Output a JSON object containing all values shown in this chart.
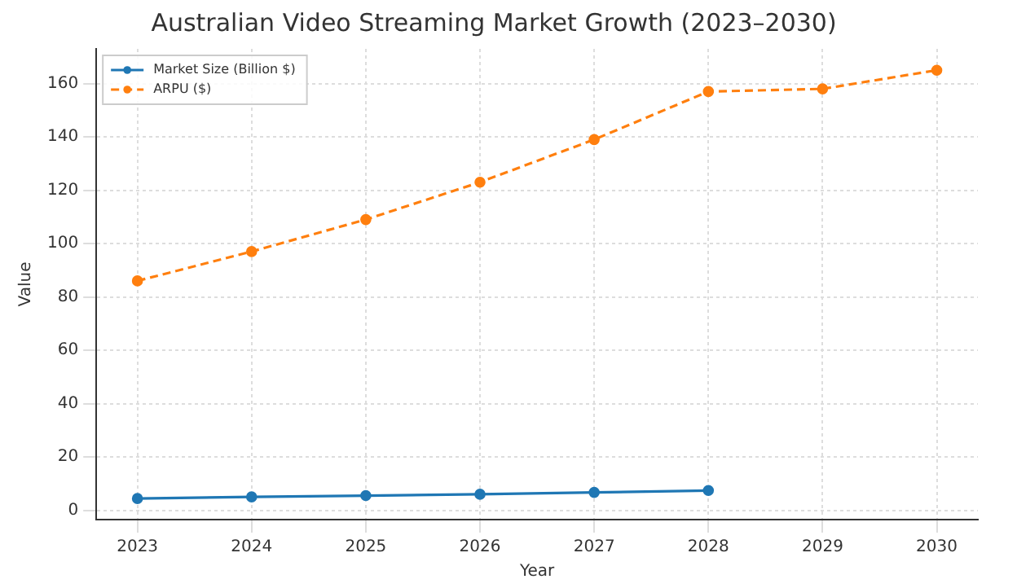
{
  "chart_data": {
    "type": "line",
    "title": "Australian Video Streaming Market Growth (2023–2030)",
    "xlabel": "Year",
    "ylabel": "Value",
    "x": [
      2023,
      2024,
      2025,
      2026,
      2027,
      2028,
      2029,
      2030
    ],
    "series": [
      {
        "name": "Market Size (Billion $)",
        "color": "#1f77b4",
        "values": [
          4.4,
          5,
          5.5,
          6,
          6.7,
          7.4,
          null,
          null
        ],
        "line_style": "solid"
      },
      {
        "name": "ARPU ($)",
        "color": "#ff7f0e",
        "values": [
          86,
          97,
          109,
          123,
          139,
          157,
          158,
          165
        ],
        "line_style": "dashed"
      }
    ],
    "xlim": [
      2022.64,
      2030.36
    ],
    "xticks": [
      2023,
      2024,
      2025,
      2026,
      2027,
      2028,
      2029,
      2030
    ],
    "ylim": [
      -3.5,
      173
    ],
    "yticks": [
      0,
      20,
      40,
      60,
      80,
      100,
      120,
      140,
      160
    ],
    "grid": true,
    "legend": "top left",
    "marker": "circle"
  }
}
